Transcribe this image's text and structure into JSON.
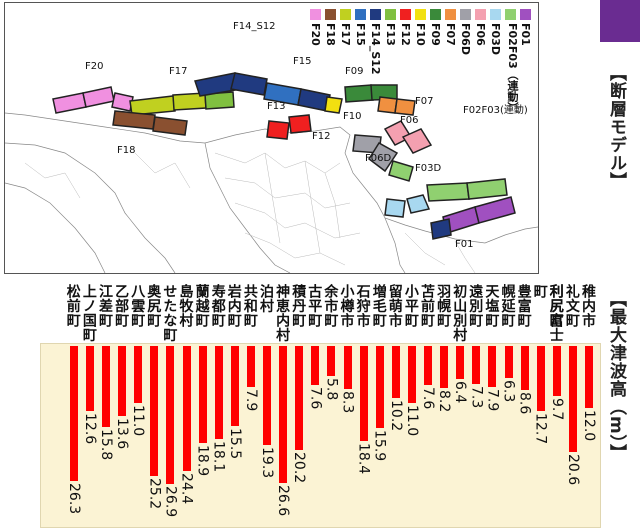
{
  "titles": {
    "fault_model": "【断層モデル】",
    "max_tsunami": "【最大津波高（m）】"
  },
  "legend": [
    {
      "label": "F01",
      "color": "#a050c0"
    },
    {
      "label": "F02F03（連動）",
      "color": "#90d070"
    },
    {
      "label": "F03D",
      "color": "#a8d8f0"
    },
    {
      "label": "F06",
      "color": "#f4a0b0"
    },
    {
      "label": "F06D",
      "color": "#a0a0a8"
    },
    {
      "label": "F07",
      "color": "#f09040"
    },
    {
      "label": "F09",
      "color": "#3a8a3a"
    },
    {
      "label": "F10",
      "color": "#f2e010"
    },
    {
      "label": "F12",
      "color": "#f02020"
    },
    {
      "label": "F13",
      "color": "#80c040"
    },
    {
      "label": "F14_S12",
      "color": "#203a80"
    },
    {
      "label": "F15",
      "color": "#3070c0"
    },
    {
      "label": "F17",
      "color": "#c0d020"
    },
    {
      "label": "F18",
      "color": "#8a5030"
    },
    {
      "label": "F20",
      "color": "#f090e0"
    }
  ],
  "fault_labels": {
    "f14": "F14_S12",
    "f20": "F20",
    "f17": "F17",
    "f15": "F15",
    "f09": "F09",
    "f14s": "F14_S12",
    "f07": "F07",
    "f10": "F10",
    "f13": "F13",
    "f12": "F12",
    "f06": "F06",
    "f06d": "F06D",
    "f03d": "F03D",
    "f02": "F02F03(連動)",
    "f01": "F01",
    "f18": "F18"
  },
  "chart_data": {
    "type": "bar",
    "title": "【最大津波高（m）】",
    "categories": [
      "稚内市",
      "礼文町",
      "利尻町",
      "利尻富士町",
      "豊富町",
      "幌延町",
      "天塩町",
      "遠別町",
      "初山別村",
      "羽幌町",
      "苫前町",
      "小平町",
      "留萌市",
      "増毛町",
      "石狩市",
      "小樽市",
      "余市町",
      "古平町",
      "積丹町",
      "神恵内村",
      "泊村",
      "共和町",
      "岩内町",
      "寿都町",
      "蘭越町",
      "島牧村",
      "せたな町",
      "奥尻町",
      "八雲町",
      "乙部町",
      "江差町",
      "上ノ国町",
      "松前町"
    ],
    "values": [
      12.0,
      20.6,
      9.7,
      12.7,
      8.6,
      6.3,
      7.9,
      7.3,
      6.4,
      8.2,
      7.6,
      11.0,
      10.2,
      15.9,
      18.4,
      8.3,
      5.8,
      7.6,
      20.2,
      26.6,
      19.3,
      7.9,
      15.5,
      18.1,
      18.9,
      24.4,
      26.9,
      25.2,
      11.0,
      13.6,
      15.8,
      12.6,
      26.3
    ],
    "value_labels": [
      "12.0",
      "20.6",
      "9.7",
      "12.7",
      "8.6",
      "6.3",
      "7.9",
      "7.3",
      "6.4",
      "8.2",
      "7.6",
      "11.0",
      "10.2",
      "15.9",
      "18.4",
      "8.3",
      "5.8",
      "7.6",
      "20.2",
      "26.6",
      "19.3",
      "7.9",
      "15.5",
      "18.1",
      "18.9",
      "24.4",
      "26.9",
      "25.2",
      "11.0",
      "13.6",
      "15.8",
      "12.6",
      "26.3"
    ],
    "ylim": [
      0,
      28
    ],
    "bar_color": "#ff0000",
    "background": "#fbf3d4"
  }
}
